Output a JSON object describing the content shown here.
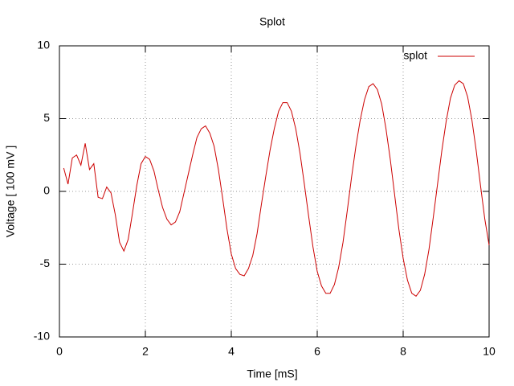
{
  "chart_data": {
    "type": "line",
    "title": "Splot",
    "x_label": "Time [mS]",
    "y_label": "Voltage [ 100 mV ]",
    "x": [
      0.1,
      0.2,
      0.3,
      0.4,
      0.5,
      0.6,
      0.7,
      0.8,
      0.9,
      1.0,
      1.1,
      1.2,
      1.3,
      1.4,
      1.5,
      1.6,
      1.7,
      1.8,
      1.9,
      2.0,
      2.1,
      2.2,
      2.3,
      2.4,
      2.5,
      2.6,
      2.7,
      2.8,
      2.9,
      3.0,
      3.1,
      3.2,
      3.3,
      3.4,
      3.5,
      3.6,
      3.7,
      3.8,
      3.9,
      4.0,
      4.1,
      4.2,
      4.3,
      4.4,
      4.5,
      4.6,
      4.7,
      4.8,
      4.9,
      5.0,
      5.1,
      5.2,
      5.3,
      5.4,
      5.5,
      5.6,
      5.7,
      5.8,
      5.9,
      6.0,
      6.1,
      6.2,
      6.3,
      6.4,
      6.5,
      6.6,
      6.7,
      6.8,
      6.9,
      7.0,
      7.1,
      7.2,
      7.3,
      7.4,
      7.5,
      7.6,
      7.7,
      7.8,
      7.9,
      8.0,
      8.1,
      8.2,
      8.3,
      8.4,
      8.5,
      8.6,
      8.7,
      8.8,
      8.9,
      9.0,
      9.1,
      9.2,
      9.3,
      9.4,
      9.5,
      9.6,
      9.7,
      9.8,
      9.9,
      10.0
    ],
    "series": [
      {
        "name": "splot",
        "color": "#cc0000",
        "values": [
          1.6,
          0.5,
          2.3,
          2.5,
          1.8,
          3.3,
          1.5,
          1.9,
          -0.4,
          -0.5,
          0.3,
          -0.1,
          -1.6,
          -3.5,
          -4.1,
          -3.3,
          -1.5,
          0.4,
          1.9,
          2.4,
          2.2,
          1.4,
          0.1,
          -1.1,
          -1.9,
          -2.3,
          -2.1,
          -1.4,
          -0.1,
          1.2,
          2.5,
          3.7,
          4.3,
          4.5,
          4.0,
          3.1,
          1.5,
          -0.5,
          -2.6,
          -4.3,
          -5.3,
          -5.7,
          -5.8,
          -5.3,
          -4.4,
          -2.9,
          -0.9,
          1.0,
          2.8,
          4.3,
          5.5,
          6.1,
          6.1,
          5.5,
          4.3,
          2.6,
          0.5,
          -1.7,
          -3.8,
          -5.5,
          -6.5,
          -7.0,
          -7.0,
          -6.4,
          -5.2,
          -3.5,
          -1.3,
          1.0,
          3.1,
          4.9,
          6.3,
          7.2,
          7.4,
          7.0,
          6.0,
          4.3,
          2.2,
          -0.2,
          -2.6,
          -4.6,
          -6.1,
          -7.0,
          -7.2,
          -6.8,
          -5.7,
          -4.0,
          -1.8,
          0.5,
          2.8,
          4.8,
          6.4,
          7.3,
          7.6,
          7.4,
          6.5,
          4.9,
          2.8,
          0.4,
          -1.9,
          -3.7
        ]
      }
    ],
    "xlim": [
      0,
      10
    ],
    "xticks": [
      0,
      2,
      4,
      6,
      8,
      10
    ],
    "ylim": [
      -10,
      10
    ],
    "yticks": [
      -10,
      -5,
      0,
      5,
      10
    ],
    "grid": true,
    "legend": "top-right"
  }
}
